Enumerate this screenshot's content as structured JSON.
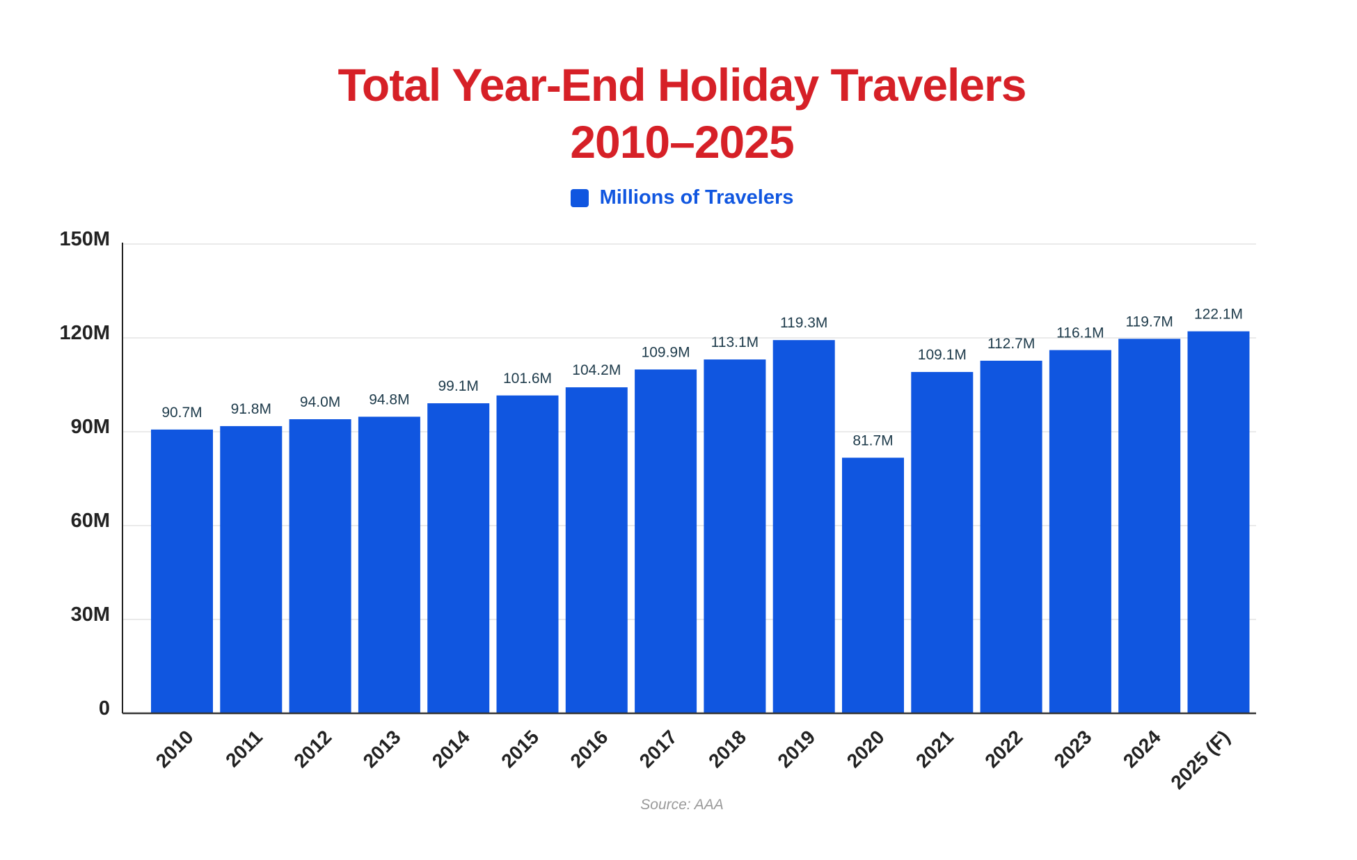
{
  "chart_data": {
    "type": "bar",
    "title": "Total Year-End Holiday Travelers",
    "subtitle": "2010–2025",
    "legend": {
      "label": "Millions of Travelers",
      "placement": "top"
    },
    "categories": [
      "2010",
      "2011",
      "2012",
      "2013",
      "2014",
      "2015",
      "2016",
      "2017",
      "2018",
      "2019",
      "2020",
      "2021",
      "2022",
      "2023",
      "2024",
      "2025 (F)"
    ],
    "series": [
      {
        "name": "Millions of Travelers",
        "values": [
          90.7,
          91.8,
          94.0,
          94.8,
          99.1,
          101.6,
          104.2,
          109.9,
          113.1,
          119.3,
          81.7,
          109.1,
          112.7,
          116.1,
          119.7,
          122.1
        ]
      }
    ],
    "data_labels": [
      "90.7M",
      "91.8M",
      "94.0M",
      "94.8M",
      "99.1M",
      "101.6M",
      "104.2M",
      "109.9M",
      "113.1M",
      "119.3M",
      "81.7M",
      "109.1M",
      "112.7M",
      "116.1M",
      "119.7M",
      "122.1M"
    ],
    "yticks": [
      0,
      30,
      60,
      90,
      120,
      150
    ],
    "ytick_labels": [
      "0",
      "30M",
      "60M",
      "90M",
      "120M",
      "150M"
    ],
    "ylim": [
      0,
      150
    ],
    "grid": true,
    "colors": {
      "bar": "#1056e0",
      "title": "#d62027",
      "data_label": "#1d3a4a"
    },
    "source": "Source: AAA"
  }
}
